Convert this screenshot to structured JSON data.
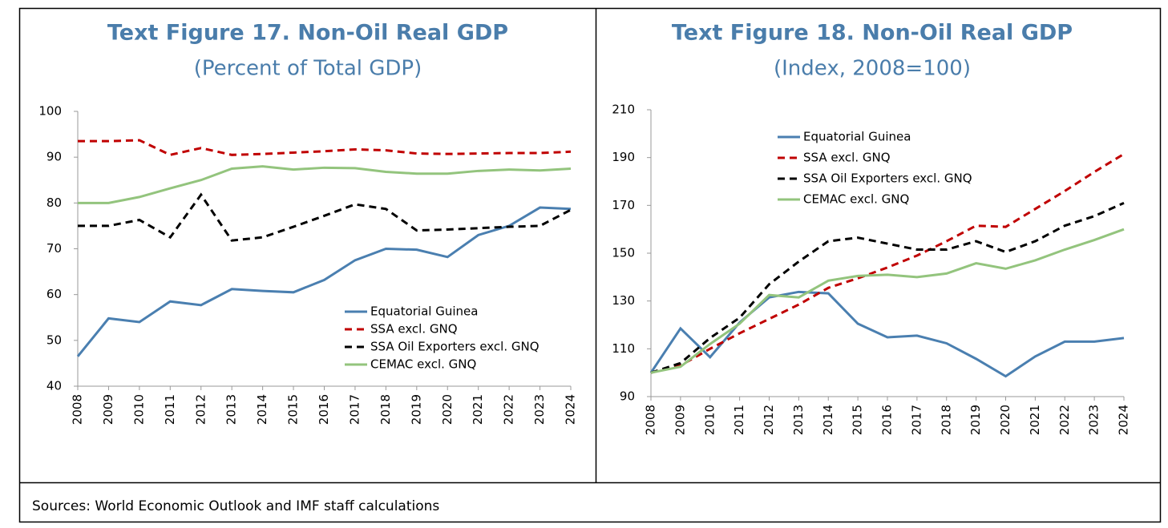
{
  "chart_data": [
    {
      "type": "line",
      "title": "Text Figure 17. Non-Oil Real GDP",
      "subtitle": "(Percent of Total GDP)",
      "categories": [
        "2008",
        "2009",
        "2010",
        "2011",
        "2012",
        "2013",
        "2014",
        "2015",
        "2016",
        "2017",
        "2018",
        "2019",
        "2020",
        "2021",
        "2022",
        "2023",
        "2024"
      ],
      "ylim": [
        40,
        100
      ],
      "yticks": [
        40,
        50,
        60,
        70,
        80,
        90,
        100
      ],
      "grid": false,
      "legend_position": "lower right",
      "series": [
        {
          "name": "Equatorial Guinea",
          "color": "#4a7fb0",
          "line_style": "solid",
          "values": [
            46.5,
            54.8,
            54.0,
            58.5,
            57.7,
            61.2,
            60.8,
            60.5,
            63.2,
            67.5,
            70.0,
            69.8,
            68.2,
            73.0,
            75.0,
            79.0,
            78.7
          ]
        },
        {
          "name": "SSA excl. GNQ",
          "color": "#c00000",
          "line_style": "dashed",
          "values": [
            93.5,
            93.5,
            93.7,
            90.5,
            92.0,
            90.5,
            90.7,
            91.0,
            91.3,
            91.7,
            91.5,
            90.8,
            90.7,
            90.8,
            90.9,
            90.9,
            91.2
          ]
        },
        {
          "name": "SSA Oil Exporters excl. GNQ",
          "color": "#000000",
          "line_style": "dashed",
          "values": [
            75.0,
            75.0,
            76.3,
            72.5,
            81.8,
            71.8,
            72.5,
            74.8,
            77.2,
            79.7,
            78.7,
            74.0,
            74.2,
            74.5,
            74.8,
            75.0,
            78.5
          ]
        },
        {
          "name": "CEMAC excl. GNQ",
          "color": "#93c47d",
          "line_style": "solid",
          "values": [
            80.0,
            80.0,
            81.3,
            83.2,
            85.0,
            87.5,
            88.0,
            87.3,
            87.7,
            87.6,
            86.8,
            86.4,
            86.4,
            87.0,
            87.3,
            87.1,
            87.5
          ]
        }
      ]
    },
    {
      "type": "line",
      "title": "Text Figure 18. Non-Oil Real GDP",
      "subtitle": "(Index, 2008=100)",
      "categories": [
        "2008",
        "2009",
        "2010",
        "2011",
        "2012",
        "2013",
        "2014",
        "2015",
        "2016",
        "2017",
        "2018",
        "2019",
        "2020",
        "2021",
        "2022",
        "2023",
        "2024"
      ],
      "ylim": [
        90,
        210
      ],
      "yticks": [
        90,
        110,
        130,
        150,
        170,
        190,
        210
      ],
      "grid": false,
      "legend_position": "upper left",
      "series": [
        {
          "name": "Equatorial Guinea",
          "color": "#4a7fb0",
          "line_style": "solid",
          "values": [
            100,
            118.5,
            106.5,
            121,
            131.5,
            133.8,
            133.2,
            120.5,
            114.8,
            115.5,
            112.3,
            105.8,
            98.5,
            106.8,
            113,
            113,
            114.5
          ]
        },
        {
          "name": "SSA excl. GNQ",
          "color": "#c00000",
          "line_style": "dashed",
          "values": [
            100,
            103,
            110,
            116.5,
            122.5,
            128.5,
            135.5,
            139.5,
            144,
            149,
            155,
            161.5,
            161,
            168.5,
            176,
            184,
            191.5
          ]
        },
        {
          "name": "SSA Oil Exporters excl. GNQ",
          "color": "#000000",
          "line_style": "dashed",
          "values": [
            100,
            104,
            114.5,
            123,
            137,
            146.5,
            155,
            156.5,
            154,
            151.5,
            151.5,
            155,
            150.5,
            155,
            161.5,
            165.5,
            171
          ]
        },
        {
          "name": "CEMAC excl. GNQ",
          "color": "#93c47d",
          "line_style": "solid",
          "values": [
            100,
            102.5,
            112,
            120.5,
            132.5,
            131.5,
            138.5,
            140.5,
            141,
            140,
            141.5,
            145.8,
            143.5,
            147,
            151.5,
            155.5,
            160
          ]
        }
      ]
    }
  ],
  "footer": "Sources: World Economic Outlook and IMF staff calculations"
}
